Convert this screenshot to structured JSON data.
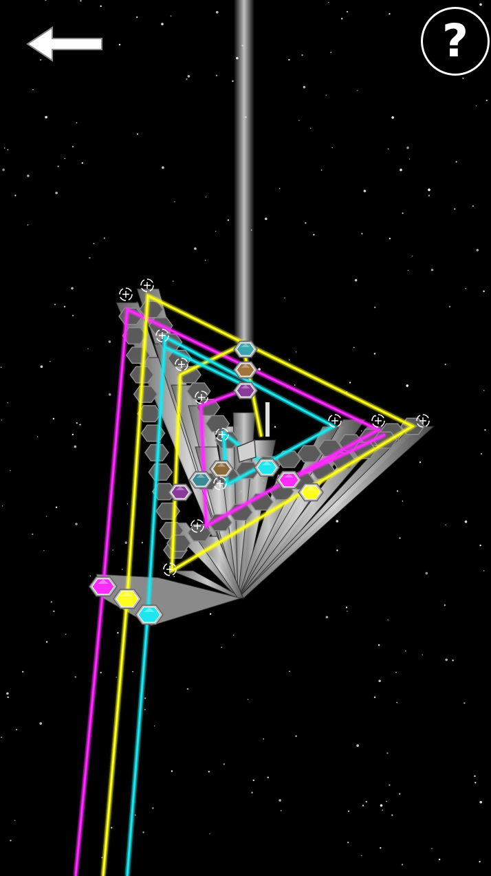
{
  "header": {
    "back_icon": "left-arrow-icon",
    "help_icon": "question-mark-icon",
    "help_label": "?"
  },
  "colors": {
    "background": "#000000",
    "magenta": "#ff2bff",
    "yellow": "#ffff1e",
    "cyan": "#1ee6ee",
    "tower_light": "#cfcfcf",
    "tower_dark": "#4a4a4a",
    "star": "#ffffff"
  },
  "board": {
    "emitters": [
      "magenta",
      "yellow",
      "cyan"
    ],
    "target_gems": [
      "cyan",
      "magenta",
      "yellow"
    ],
    "rotator_icon": "rotate-arrows-icon"
  }
}
